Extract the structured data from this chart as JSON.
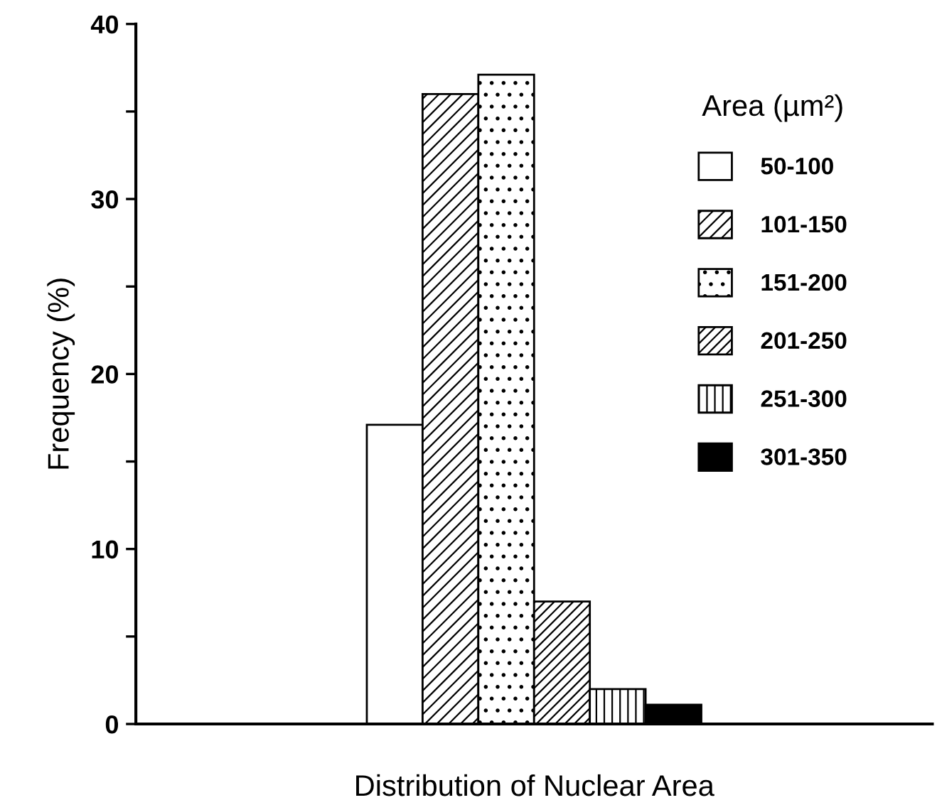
{
  "chart_data": {
    "type": "bar",
    "xlabel": "Distribution of Nuclear Area",
    "ylabel": "Frequency (%)",
    "legend_title": "Area (µm²)",
    "legend": "top right",
    "categories": [
      null
    ],
    "series": [
      {
        "name": "50-100",
        "color": "#ffffff",
        "values": [
          17.1
        ]
      },
      {
        "name": "101-150",
        "color": "#000000",
        "values": [
          36.0
        ]
      },
      {
        "name": "151-200",
        "color": "#000000",
        "values": [
          37.1
        ]
      },
      {
        "name": "201-250",
        "color": "#000000",
        "values": [
          7.0
        ]
      },
      {
        "name": "251-300",
        "color": "#000000",
        "values": [
          2.0
        ]
      },
      {
        "name": "301-350",
        "color": "#000000",
        "values": [
          1.1
        ]
      }
    ],
    "ylim": [
      0,
      40
    ],
    "yticks": [
      0,
      {
        "value": 5,
        "label": null
      },
      10,
      {
        "value": 15,
        "label": null
      },
      20,
      {
        "value": 25,
        "label": null
      },
      30,
      {
        "value": 35,
        "label": null
      },
      40
    ],
    "grid": false
  }
}
